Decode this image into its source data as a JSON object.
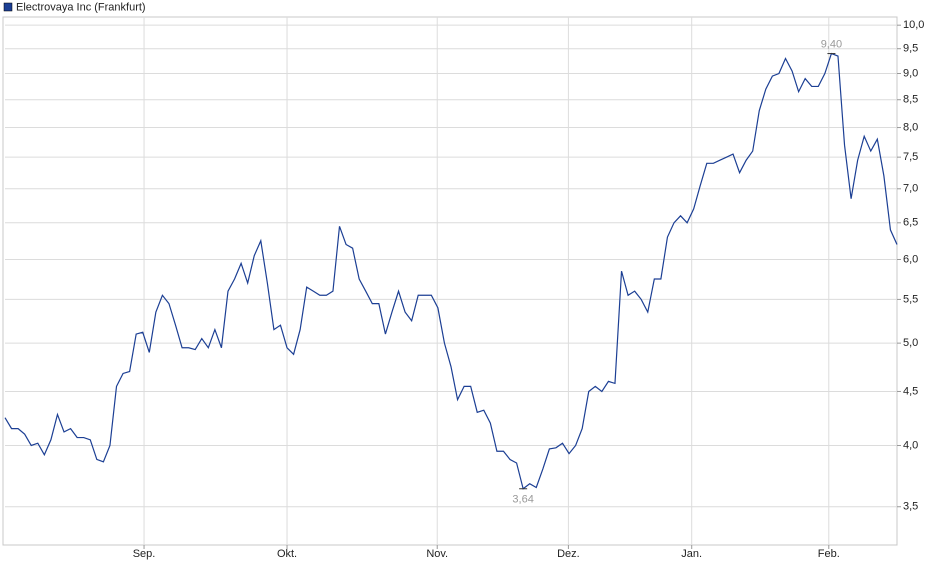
{
  "chart_data": {
    "type": "line",
    "legend": "top-left",
    "log_scale": true,
    "grid": true,
    "series": [
      {
        "name": "Electrovaya Inc (Frankfurt)",
        "color": "#1c3f94",
        "values": [
          4.25,
          4.15,
          4.15,
          4.1,
          4.0,
          4.02,
          3.92,
          4.05,
          4.28,
          4.12,
          4.15,
          4.07,
          4.07,
          4.05,
          3.88,
          3.86,
          4.0,
          4.55,
          4.68,
          4.7,
          5.1,
          5.12,
          4.9,
          5.35,
          5.55,
          5.45,
          5.2,
          4.95,
          4.95,
          4.93,
          5.05,
          4.95,
          5.15,
          4.95,
          5.6,
          5.75,
          5.95,
          5.7,
          6.05,
          6.25,
          5.7,
          5.15,
          5.2,
          4.95,
          4.88,
          5.15,
          5.65,
          5.6,
          5.55,
          5.55,
          5.6,
          6.45,
          6.2,
          6.15,
          5.75,
          5.6,
          5.45,
          5.45,
          5.1,
          5.35,
          5.6,
          5.35,
          5.25,
          5.55,
          5.55,
          5.55,
          5.4,
          5.0,
          4.75,
          4.42,
          4.55,
          4.55,
          4.3,
          4.32,
          4.2,
          3.95,
          3.95,
          3.88,
          3.85,
          3.64,
          3.68,
          3.65,
          3.8,
          3.97,
          3.98,
          4.02,
          3.93,
          4.0,
          4.15,
          4.5,
          4.55,
          4.5,
          4.6,
          4.58,
          5.85,
          5.55,
          5.6,
          5.5,
          5.35,
          5.75,
          5.75,
          6.3,
          6.5,
          6.6,
          6.5,
          6.7,
          7.05,
          7.4,
          7.4,
          7.45,
          7.5,
          7.55,
          7.25,
          7.45,
          7.6,
          8.3,
          8.7,
          8.95,
          9.0,
          9.3,
          9.05,
          8.65,
          8.9,
          8.75,
          8.75,
          9.0,
          9.4,
          9.35,
          7.7,
          6.85,
          7.45,
          7.85,
          7.6,
          7.8,
          7.2,
          6.4,
          6.2
        ]
      }
    ],
    "annotations": [
      {
        "label": "9,40",
        "value": 9.4
      },
      {
        "label": "3,64",
        "value": 3.64
      }
    ],
    "xlim": [
      0,
      136
    ],
    "xticks": [
      {
        "value": 21.2,
        "label": "Sep."
      },
      {
        "value": 43,
        "label": "Okt."
      },
      {
        "value": 65.9,
        "label": "Nov."
      },
      {
        "value": 85.9,
        "label": "Dez."
      },
      {
        "value": 104.7,
        "label": "Jan."
      },
      {
        "value": 125.6,
        "label": "Feb."
      }
    ],
    "ylim": [
      3.22,
      10.18
    ],
    "yticks": [
      {
        "value": 3.5,
        "label": "3,5"
      },
      {
        "value": 4,
        "label": "4,0"
      },
      {
        "value": 4.5,
        "label": "4,5"
      },
      {
        "value": 5,
        "label": "5,0"
      },
      {
        "value": 5.5,
        "label": "5,5"
      },
      {
        "value": 6,
        "label": "6,0"
      },
      {
        "value": 6.5,
        "label": "6,5"
      },
      {
        "value": 7,
        "label": "7,0"
      },
      {
        "value": 7.5,
        "label": "7,5"
      },
      {
        "value": 8,
        "label": "8,0"
      },
      {
        "value": 8.5,
        "label": "8,5"
      },
      {
        "value": 9,
        "label": "9,0"
      },
      {
        "value": 9.5,
        "label": "9,5"
      },
      {
        "value": 10,
        "label": "10,0"
      }
    ]
  }
}
